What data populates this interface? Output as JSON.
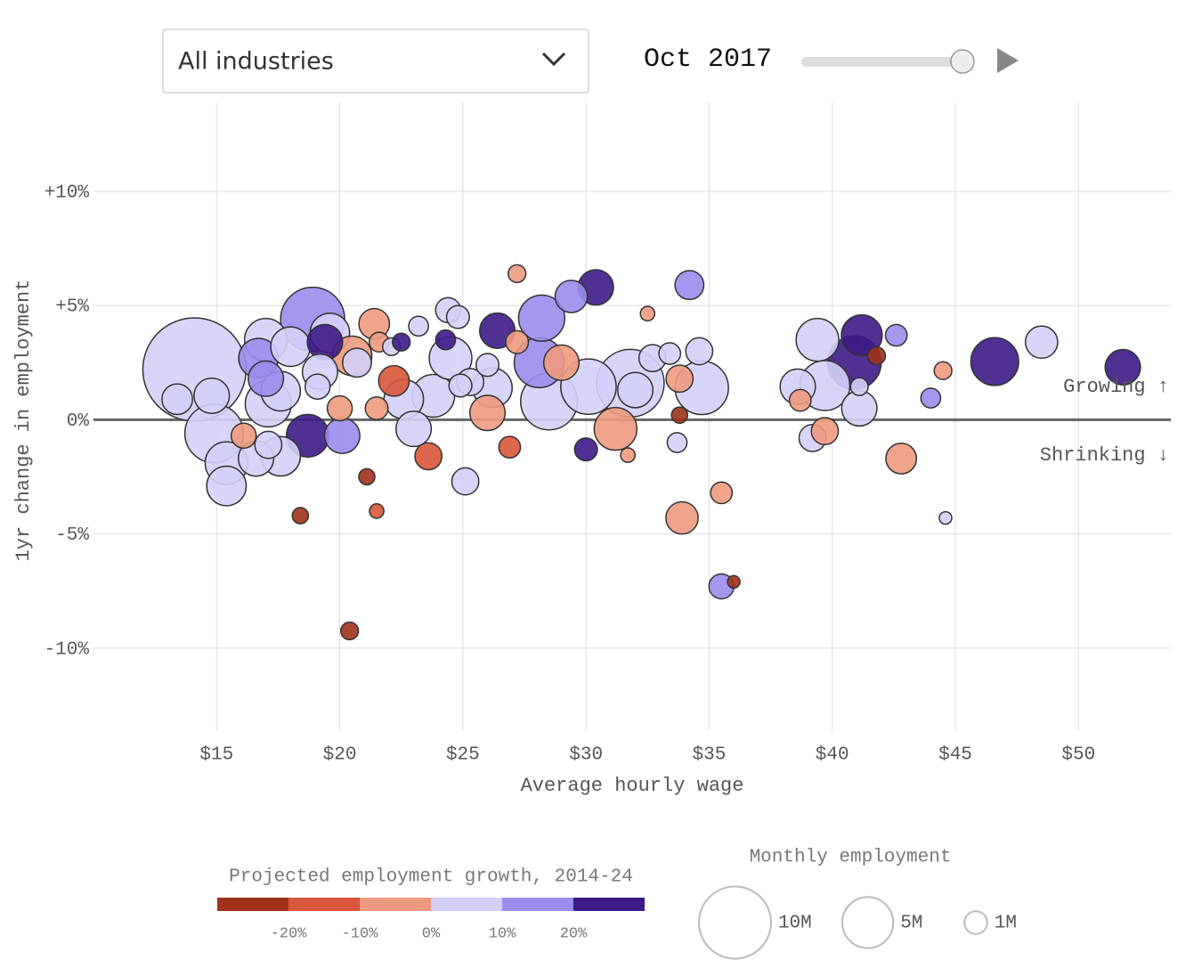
{
  "ui": {
    "dropdown": "All industries",
    "date": "Oct 2017"
  },
  "chart_data": {
    "type": "scatter",
    "x_label": "Average hourly wage",
    "y_label": "1yr change in employment",
    "annotations": [
      "Growing ↑",
      "Shrinking ↓"
    ],
    "xlim": [
      10,
      53.75
    ],
    "ylim": [
      -13.6,
      13.9
    ],
    "xticks": [
      {
        "value": 15,
        "label": "$15"
      },
      {
        "value": 20,
        "label": "$20"
      },
      {
        "value": 25,
        "label": "$25"
      },
      {
        "value": 30,
        "label": "$30"
      },
      {
        "value": 35,
        "label": "$35"
      },
      {
        "value": 40,
        "label": "$40"
      },
      {
        "value": 45,
        "label": "$45"
      },
      {
        "value": 50,
        "label": "$50"
      }
    ],
    "yticks": [
      {
        "value": 10,
        "label": "+10%"
      },
      {
        "value": 5,
        "label": "+5%"
      },
      {
        "value": 0,
        "label": "0%"
      },
      {
        "value": -5,
        "label": "-5%"
      },
      {
        "value": -10,
        "label": "-10%"
      }
    ],
    "grid": true,
    "x": [
      14.1,
      13.4,
      14.8,
      15.4,
      15.4,
      14.9,
      16.1,
      16.6,
      17.1,
      17.6,
      17.0,
      16.7,
      17.0,
      17.1,
      17.6,
      18.0,
      18.9,
      19.4,
      19.6,
      18.7,
      20.1,
      19.2,
      19.1,
      20.5,
      20.7,
      20.0,
      21.4,
      21.6,
      22.1,
      22.5,
      22.2,
      22.6,
      21.5,
      23.0,
      23.6,
      23.8,
      23.2,
      24.4,
      24.8,
      24.3,
      24.5,
      24.9,
      25.3,
      25.1,
      26.0,
      26.0,
      26.4,
      27.2,
      26.9,
      27.2,
      28.2,
      28.1,
      29.0,
      28.5,
      29.4,
      30.0,
      30.1,
      30.4,
      31.2,
      31.8,
      32.0,
      31.7,
      32.5,
      32.7,
      33.4,
      33.8,
      33.8,
      33.7,
      33.9,
      34.2,
      34.6,
      34.7,
      35.5,
      35.5,
      36.0,
      38.6,
      38.7,
      39.4,
      39.7,
      39.2,
      39.7,
      40.9,
      41.2,
      41.8,
      41.1,
      41.1,
      42.8,
      42.6,
      44.0,
      44.5,
      44.6,
      46.6,
      48.5,
      51.8,
      18.4,
      21.1,
      21.5,
      20.4,
      26.2
    ],
    "y": [
      2.2,
      0.9,
      1.05,
      -2.9,
      -1.9,
      -0.6,
      -0.7,
      -1.7,
      -1.1,
      -1.6,
      3.5,
      2.7,
      1.8,
      0.7,
      1.25,
      3.2,
      4.4,
      3.4,
      3.8,
      -0.7,
      -0.7,
      2.1,
      1.45,
      2.8,
      2.5,
      0.5,
      4.2,
      3.4,
      3.2,
      3.4,
      1.7,
      0.9,
      0.5,
      -0.4,
      -1.6,
      1.05,
      4.1,
      4.8,
      4.5,
      3.5,
      2.7,
      1.5,
      1.65,
      -2.7,
      2.4,
      0.3,
      3.9,
      3.4,
      -1.2,
      6.4,
      4.45,
      2.5,
      2.5,
      0.8,
      5.4,
      -1.3,
      1.45,
      5.8,
      -0.4,
      1.6,
      1.3,
      -1.55,
      4.65,
      2.7,
      2.9,
      1.8,
      0.2,
      -1.0,
      -4.3,
      5.9,
      3.0,
      1.4,
      -3.2,
      -7.3,
      -7.1,
      1.45,
      0.85,
      3.5,
      1.5,
      -0.8,
      -0.5,
      2.5,
      3.7,
      2.8,
      0.5,
      1.45,
      -1.7,
      3.7,
      0.95,
      2.15,
      -4.3,
      2.55,
      3.4,
      2.3,
      -4.2,
      -2.5,
      -4.0,
      -9.25,
      1.4
    ],
    "size": [
      20.5,
      1.8,
      2.4,
      3.0,
      3.5,
      6.6,
      1.2,
      2.4,
      1.4,
      3.0,
      3.5,
      3.0,
      2.4,
      4.1,
      3.0,
      3.0,
      7.9,
      2.4,
      3.0,
      3.5,
      2.4,
      2.4,
      1.2,
      3.0,
      1.6,
      1.2,
      1.8,
      0.75,
      0.6,
      0.6,
      1.8,
      3.0,
      1.0,
      2.4,
      1.4,
      3.5,
      0.75,
      1.2,
      1.0,
      0.75,
      3.5,
      1.0,
      1.4,
      1.4,
      1.0,
      2.4,
      2.4,
      1.0,
      0.9,
      0.6,
      4.1,
      4.8,
      2.4,
      6.2,
      2.0,
      1.0,
      5.9,
      2.4,
      3.5,
      8.8,
      2.4,
      0.4,
      0.4,
      1.4,
      0.9,
      1.4,
      0.5,
      0.75,
      2.0,
      1.6,
      1.4,
      5.5,
      0.9,
      1.2,
      0.3,
      2.4,
      0.9,
      3.5,
      4.8,
      1.4,
      1.4,
      5.5,
      3.2,
      0.6,
      2.4,
      0.6,
      1.8,
      0.9,
      0.75,
      0.6,
      0.3,
      4.4,
      2.0,
      2.4,
      0.5,
      0.5,
      0.4,
      0.6,
      3.0
    ],
    "growth": [
      5,
      5,
      5,
      5,
      5,
      5,
      -5,
      5,
      5,
      5,
      5,
      15,
      15,
      5,
      5,
      5,
      15,
      25,
      5,
      25,
      15,
      5,
      5,
      -5,
      5,
      -5,
      -5,
      -5,
      5,
      25,
      -15,
      5,
      -5,
      5,
      -15,
      5,
      5,
      5,
      5,
      25,
      5,
      5,
      5,
      5,
      5,
      -5,
      25,
      -5,
      -15,
      -5,
      15,
      15,
      -5,
      5,
      15,
      25,
      5,
      25,
      -5,
      5,
      5,
      -5,
      -5,
      5,
      5,
      -5,
      -25,
      5,
      -5,
      15,
      5,
      5,
      -5,
      15,
      -25,
      5,
      -5,
      5,
      5,
      5,
      -5,
      25,
      25,
      -25,
      5,
      5,
      -5,
      15,
      15,
      -5,
      5,
      25,
      5,
      25,
      -25,
      -25,
      -15,
      -25,
      5
    ],
    "color_title": "Projected employment growth, 2014-24",
    "color_ticks": [
      {
        "value": -20,
        "label": "-20%"
      },
      {
        "value": -10,
        "label": "-10%"
      },
      {
        "value": 0,
        "label": "0%"
      },
      {
        "value": 10,
        "label": "10%"
      },
      {
        "value": 20,
        "label": "20%"
      }
    ],
    "colors": [
      "#a0321c",
      "#d9573a",
      "#ee9a80",
      "#d4d0f8",
      "#9b8cec",
      "#3d1a87"
    ],
    "size_title": "Monthly employment",
    "size_legend": [
      {
        "value": 10,
        "label": "10M"
      },
      {
        "value": 5,
        "label": "5M"
      },
      {
        "value": 1,
        "label": "1M"
      }
    ]
  }
}
